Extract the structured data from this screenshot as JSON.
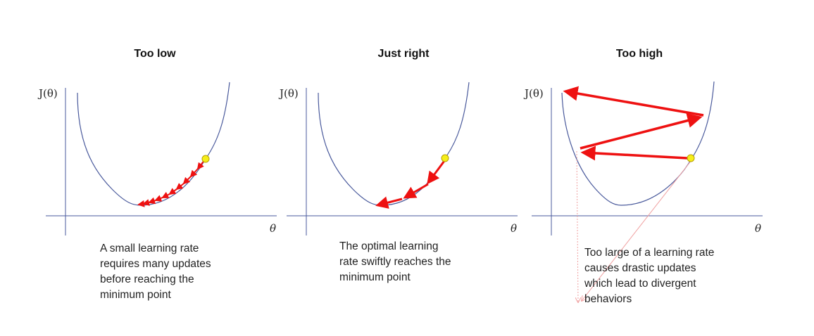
{
  "panels": [
    {
      "title": "Too low",
      "y_axis_label": "J(θ)",
      "x_axis_label": "θ",
      "caption": [
        "A small learning rate",
        "requires many updates",
        "before reaching the",
        "minimum point"
      ]
    },
    {
      "title": "Just right",
      "y_axis_label": "J(θ)",
      "x_axis_label": "θ",
      "caption": [
        "The optimal learning",
        "rate swiftly reaches the",
        "minimum point"
      ]
    },
    {
      "title": "Too high",
      "y_axis_label": "J(θ)",
      "x_axis_label": "θ",
      "caption": [
        "Too large of a learning rate",
        "causes drastic updates",
        "which lead to divergent",
        "behaviors"
      ]
    }
  ],
  "colors": {
    "axis": "#4a5a9c",
    "curve": "#4a5a9c",
    "arrow": "#ee1111",
    "start_point": "#f5ee1a",
    "dotted_guide": "#f0a0a0"
  }
}
